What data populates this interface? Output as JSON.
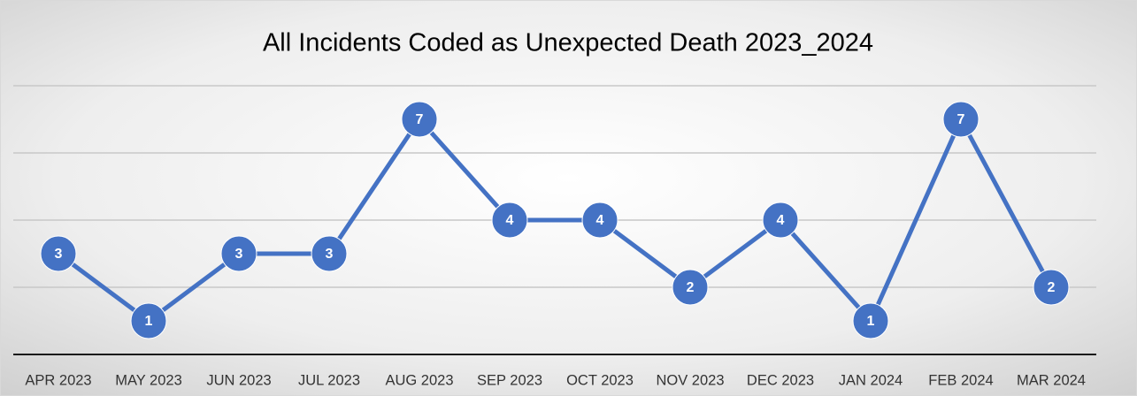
{
  "chart_data": {
    "type": "line",
    "title": "All Incidents Coded as Unexpected Death 2023_2024",
    "categories": [
      "APR 2023",
      "MAY 2023",
      "JUN 2023",
      "JUL 2023",
      "AUG 2023",
      "SEP 2023",
      "OCT 2023",
      "NOV 2023",
      "DEC 2023",
      "JAN 2024",
      "FEB 2024",
      "MAR 2024"
    ],
    "series": [
      {
        "name": "Unexpected Death",
        "color": "#4472c4",
        "values": [
          3,
          1,
          3,
          3,
          7,
          4,
          4,
          2,
          4,
          1,
          7,
          2
        ]
      }
    ],
    "ylim": [
      0,
      8
    ],
    "yticks": [
      0,
      2,
      4,
      6,
      8
    ],
    "grid": true
  }
}
